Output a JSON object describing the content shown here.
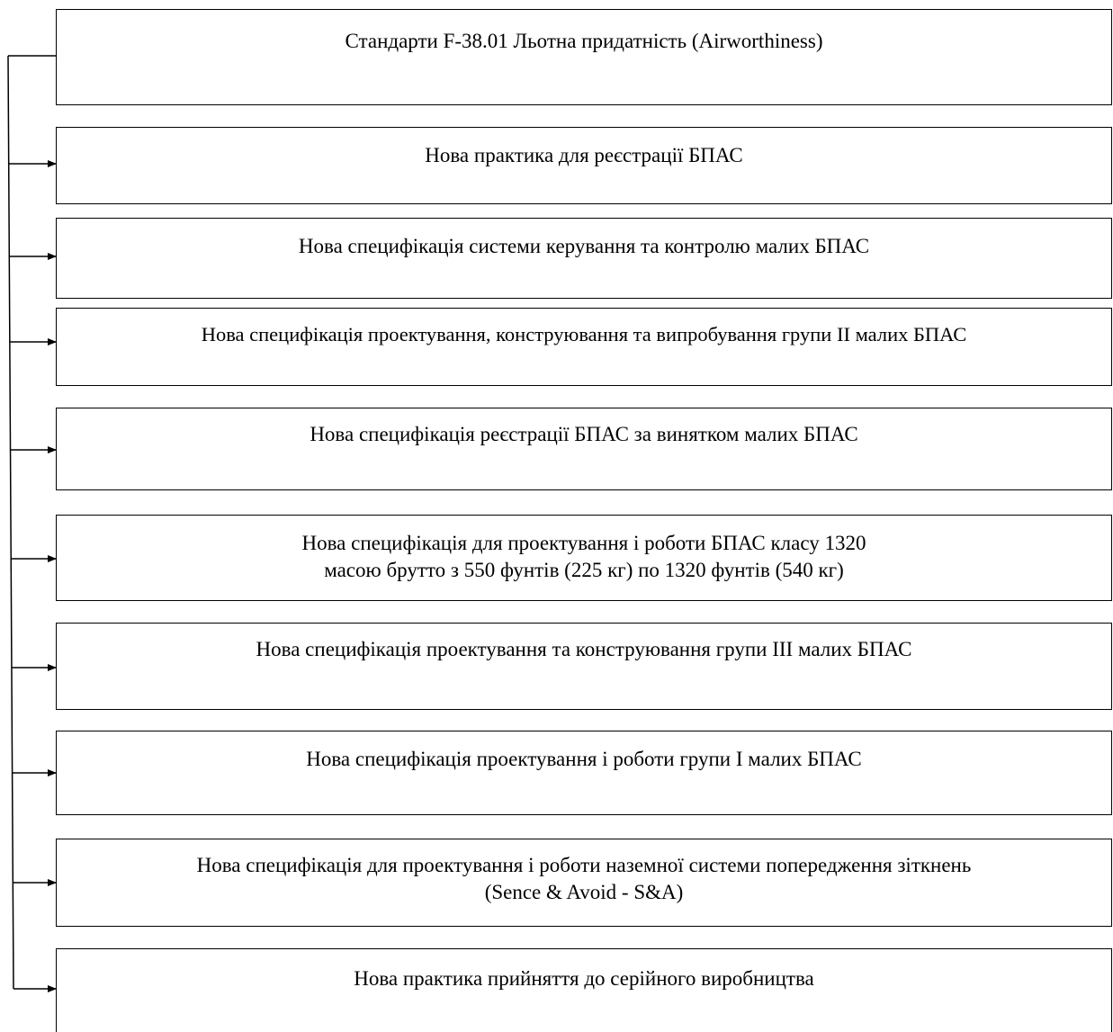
{
  "diagram": {
    "root": {
      "label": "Стандарти F-38.01 Льотна придатність (Airworthiness)"
    },
    "children": [
      {
        "lines": [
          "Нова практика для реєстрації БПАС"
        ]
      },
      {
        "lines": [
          "Нова специфікація системи керування та контролю малих БПАС"
        ]
      },
      {
        "lines": [
          "Нова специфікація проектування, конструювання та випробування групи II малих БПАС"
        ]
      },
      {
        "lines": [
          "Нова специфікація реєстрації БПАС за винятком малих БПАС"
        ]
      },
      {
        "lines": [
          "Нова специфікація для проектування і роботи БПАС класу 1320",
          "масою брутто з 550 фунтів (225 кг) по 1320 фунтів (540 кг)"
        ]
      },
      {
        "lines": [
          "Нова специфікація проектування та конструювання групи III малих БПАС"
        ]
      },
      {
        "lines": [
          "Нова специфікація проектування і роботи групи I малих БПАС"
        ]
      },
      {
        "lines": [
          "Нова специфікація для проектування і роботи наземної системи попередження зіткнень",
          "(Sence & Avoid - S&A)"
        ]
      },
      {
        "lines": [
          "Нова практика прийняття до серійного виробництва"
        ]
      }
    ]
  }
}
